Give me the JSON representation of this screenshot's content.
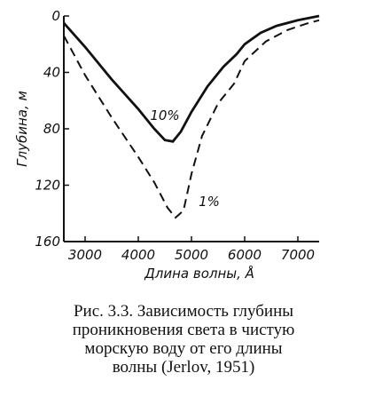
{
  "chart_data": {
    "type": "line",
    "xlabel": "Длина волны, Å",
    "ylabel": "Глубина, м",
    "xlim": [
      2600,
      7400
    ],
    "xticks": [
      3000,
      4000,
      5000,
      6000,
      7000
    ],
    "ylim": [
      0,
      160
    ],
    "yticks": [
      0,
      40,
      80,
      120,
      160
    ],
    "y_inverted": true,
    "series": [
      {
        "name": "10%",
        "color": "#111",
        "dash": false,
        "x": [
          2600,
          3000,
          3500,
          4000,
          4300,
          4500,
          4650,
          4800,
          5000,
          5300,
          5600,
          5850,
          6000,
          6300,
          6600,
          7000,
          7400
        ],
        "values": [
          5,
          22,
          45,
          66,
          80,
          88,
          89,
          82,
          68,
          50,
          36,
          27,
          20,
          12,
          7,
          3,
          0
        ]
      },
      {
        "name": "1%",
        "color": "#111",
        "dash": true,
        "x": [
          2600,
          3000,
          3500,
          4000,
          4300,
          4550,
          4700,
          4850,
          5000,
          5200,
          5500,
          5800,
          6000,
          6400,
          6800,
          7200,
          7400
        ],
        "values": [
          14,
          42,
          72,
          100,
          118,
          136,
          143,
          138,
          112,
          85,
          62,
          48,
          32,
          18,
          10,
          5,
          3
        ]
      }
    ],
    "caption": [
      "Рис. 3.3. Зависимость глубины",
      "проникновения света в чистую",
      "морскую воду от его длины",
      "волны (Jerlov, 1951)"
    ]
  }
}
